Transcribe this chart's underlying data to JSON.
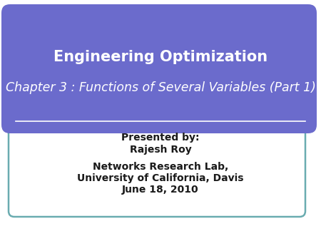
{
  "background_color": "#ffffff",
  "outer_box_edge_color": "#6aacb0",
  "banner_color": "#6b6bcc",
  "banner_text_line1": "Engineering Optimization",
  "banner_text_line2": "Chapter 3 : Functions of Several Variables (Part 1)",
  "divider_color": "#ffffff",
  "body_text_line1": "Presented by:",
  "body_text_line2": "Rajesh Roy",
  "body_text_line3": "Networks Research Lab,",
  "body_text_line4": "University of California, Davis",
  "body_text_line5": "June 18, 2010",
  "body_text_color": "#1a1a1a",
  "title_fontsize": 15,
  "subtitle_fontsize": 12.5,
  "body_fontsize": 10
}
